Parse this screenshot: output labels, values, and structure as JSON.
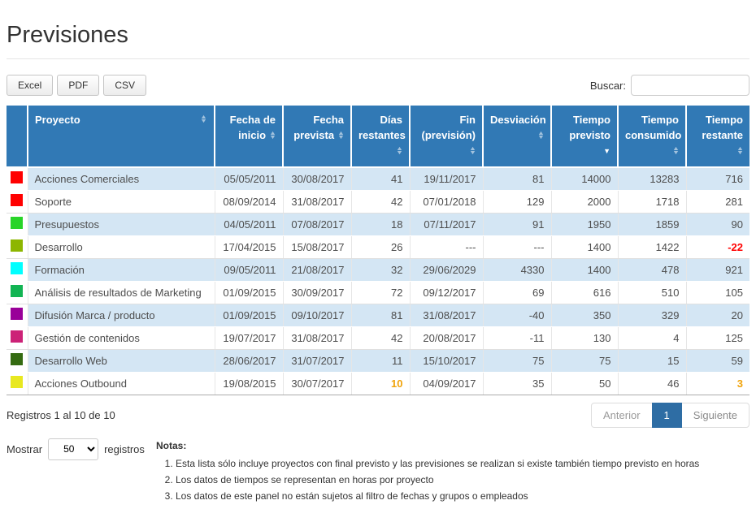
{
  "page": {
    "title": "Previsiones"
  },
  "toolbar": {
    "export_buttons": [
      "Excel",
      "PDF",
      "CSV"
    ],
    "search": {
      "label": "Buscar:",
      "value": "",
      "placeholder": ""
    }
  },
  "table": {
    "columns": [
      {
        "key": "color",
        "label": "",
        "sort": ""
      },
      {
        "key": "proyecto",
        "label": "Proyecto",
        "sort": "both"
      },
      {
        "key": "fecha-de-inicio",
        "label": "Fecha de inicio",
        "sort": "both"
      },
      {
        "key": "fecha-prevista",
        "label": "Fecha prevista",
        "sort": "both"
      },
      {
        "key": "dias-restantes",
        "label": "Días restantes",
        "sort": "both"
      },
      {
        "key": "fin-prevision",
        "label": "Fin (previsión)",
        "sort": "both"
      },
      {
        "key": "desviacion",
        "label": "Desviación",
        "sort": "both"
      },
      {
        "key": "tiempo-previsto",
        "label": "Tiempo previsto",
        "sort": "desc"
      },
      {
        "key": "tiempo-consumido",
        "label": "Tiempo consumido",
        "sort": "both"
      },
      {
        "key": "tiempo-restante",
        "label": "Tiempo restante",
        "sort": "both"
      }
    ],
    "rows": [
      {
        "color": "#ff0000",
        "cells": [
          "Acciones Comerciales",
          "05/05/2011",
          "30/08/2017",
          "41",
          "19/11/2017",
          "81",
          "14000",
          "13283",
          "716"
        ],
        "cell_styles": {}
      },
      {
        "color": "#ff0000",
        "cells": [
          "Soporte",
          "08/09/2014",
          "31/08/2017",
          "42",
          "07/01/2018",
          "129",
          "2000",
          "1718",
          "281"
        ],
        "cell_styles": {}
      },
      {
        "color": "#28d428",
        "cells": [
          "Presupuestos",
          "04/05/2011",
          "07/08/2017",
          "18",
          "07/11/2017",
          "91",
          "1950",
          "1859",
          "90"
        ],
        "cell_styles": {}
      },
      {
        "color": "#8db600",
        "cells": [
          "Desarrollo",
          "17/04/2015",
          "15/08/2017",
          "26",
          "---",
          "---",
          "1400",
          "1422",
          "-22"
        ],
        "cell_styles": {
          "8": "danger"
        }
      },
      {
        "color": "#00ffff",
        "cells": [
          "Formación",
          "09/05/2011",
          "21/08/2017",
          "32",
          "29/06/2029",
          "4330",
          "1400",
          "478",
          "921"
        ],
        "cell_styles": {}
      },
      {
        "color": "#12b453",
        "cells": [
          "Análisis de resultados de Marketing",
          "01/09/2015",
          "30/09/2017",
          "72",
          "09/12/2017",
          "69",
          "616",
          "510",
          "105"
        ],
        "cell_styles": {}
      },
      {
        "color": "#990099",
        "cells": [
          "Difusión Marca / producto",
          "01/09/2015",
          "09/10/2017",
          "81",
          "31/08/2017",
          "-40",
          "350",
          "329",
          "20"
        ],
        "cell_styles": {}
      },
      {
        "color": "#cc2277",
        "cells": [
          "Gestión de contenidos",
          "19/07/2017",
          "31/08/2017",
          "42",
          "20/08/2017",
          "-11",
          "130",
          "4",
          "125"
        ],
        "cell_styles": {}
      },
      {
        "color": "#356b11",
        "cells": [
          "Desarrollo Web",
          "28/06/2017",
          "31/07/2017",
          "11",
          "15/10/2017",
          "75",
          "75",
          "15",
          "59"
        ],
        "cell_styles": {}
      },
      {
        "color": "#e8e820",
        "cells": [
          "Acciones Outbound",
          "19/08/2015",
          "30/07/2017",
          "10",
          "04/09/2017",
          "35",
          "50",
          "46",
          "3"
        ],
        "cell_styles": {
          "3": "warn",
          "8": "warn"
        }
      }
    ]
  },
  "footer": {
    "records_info": "Registros 1 al 10 de 10",
    "show_label": "Mostrar",
    "page_length": "50",
    "records_label": "registros",
    "pagination": {
      "previous": "Anterior",
      "current": "1",
      "next": "Siguiente"
    }
  },
  "notes": {
    "heading": "Notas:",
    "items": [
      "Esta lista sólo incluye proyectos con final previsto y las previsiones se realizan si existe también tiempo previsto en horas",
      "Los datos de tiempos se representan en horas por proyecto",
      "Los datos de este panel no están sujetos al filtro de fechas y grupos o empleados"
    ]
  },
  "colors": {
    "header_bg": "#3179b5",
    "stripe_bg": "#d4e6f4",
    "active_page_bg": "#2e6da4",
    "warn_text": "#f0a30a",
    "danger_text": "#ff0000"
  }
}
